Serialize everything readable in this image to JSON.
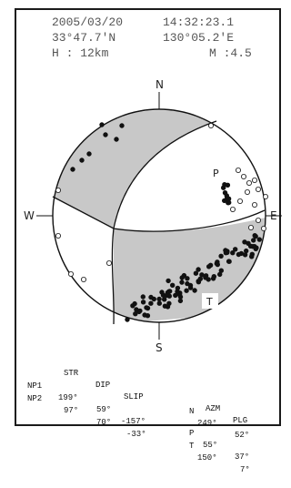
{
  "header": {
    "date": "2005/03/20",
    "time": "14:32:23.1",
    "lat": "33°47.7'N",
    "lon": "130°05.2'E",
    "depth": "H : 12km",
    "magnitude": "M :4.5"
  },
  "directions": {
    "north": "N",
    "south": "S",
    "east": "E",
    "west": "W"
  },
  "axes_labels": {
    "p": "P",
    "t": "T"
  },
  "table": {
    "headers": [
      "STR",
      "DIP",
      "SLIP",
      "AZM",
      "PLG"
    ],
    "planes": [
      {
        "name": "NP1",
        "str": "199°",
        "dip": "59°",
        "slip": "-157°"
      },
      {
        "name": "NP2",
        "str": "97°",
        "dip": "70°",
        "slip": "-33°"
      }
    ],
    "axes": [
      {
        "name": "P",
        "azm": "55°",
        "plg": "37°"
      },
      {
        "name": "T",
        "azm": "150°",
        "plg": "7°"
      },
      {
        "name": "N",
        "azm": "249°",
        "plg": "52°"
      }
    ]
  },
  "colors": {
    "compression_fill": "#c8c8c8",
    "outline": "#111111",
    "text": "#555555"
  }
}
